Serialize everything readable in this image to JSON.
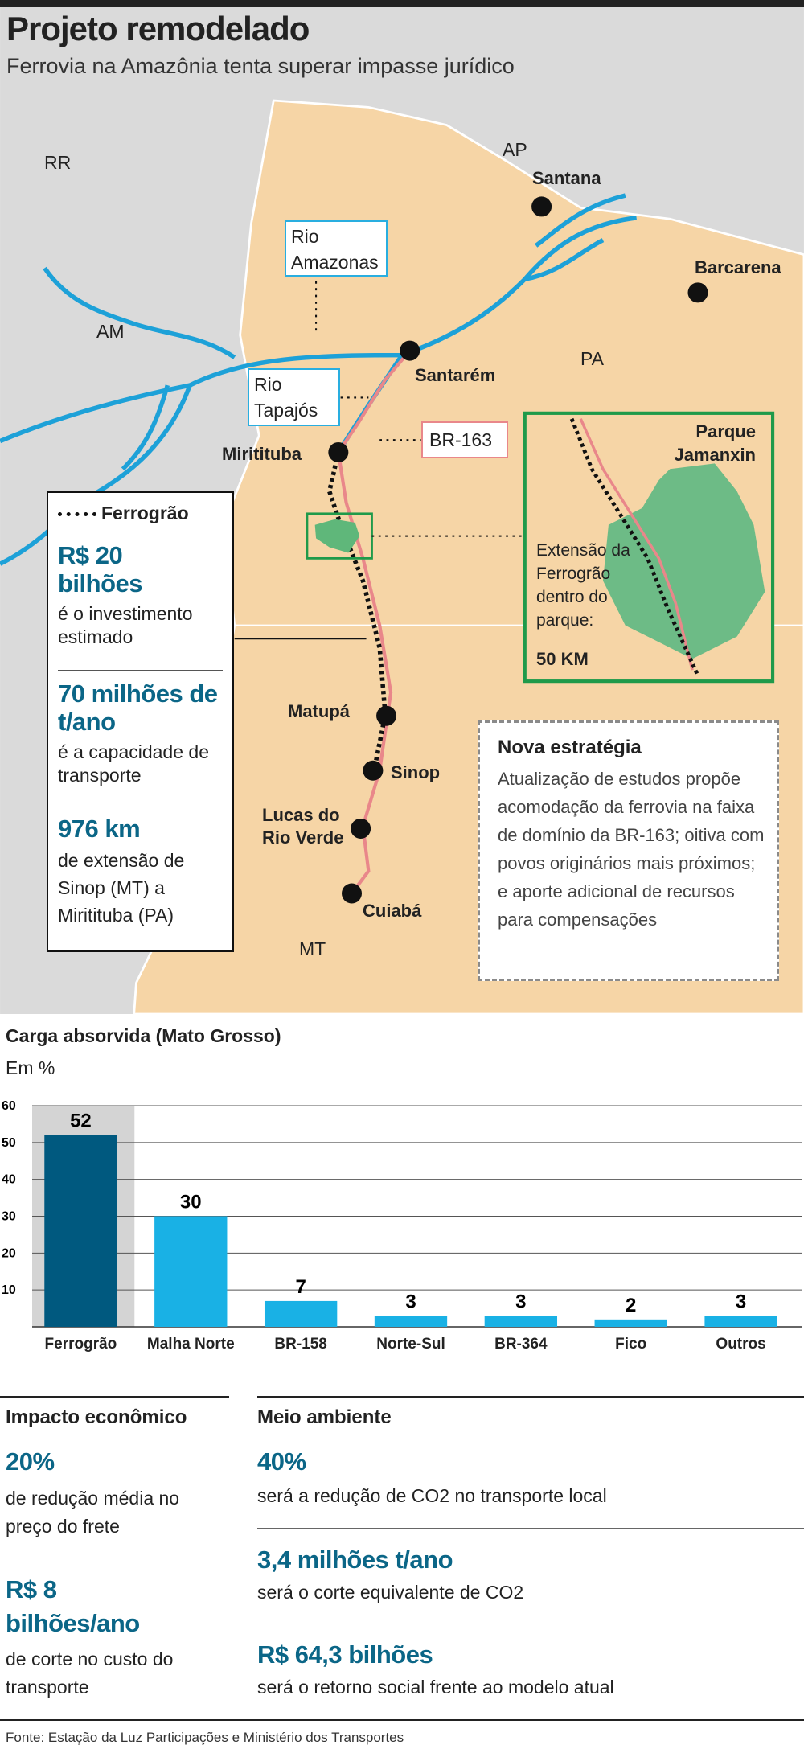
{
  "header": {
    "title": "Projeto remodelado",
    "subtitle": "Ferrovia na Amazônia tenta superar impasse jurídico"
  },
  "map": {
    "states": [
      "RR",
      "AP",
      "AM",
      "PA",
      "MT"
    ],
    "cities": [
      "Santana",
      "Barcarena",
      "Santarém",
      "Miritituba",
      "Matupá",
      "Sinop",
      "Lucas do Rio Verde",
      "Cuiabá"
    ],
    "rivers": [
      "Rio Amazonas",
      "Rio Tapajós"
    ],
    "highway": "BR-163",
    "inset": {
      "title": "Parque Jamanxin",
      "note": "Extensão da Ferrogrão dentro do parque:",
      "length": "50 KM"
    }
  },
  "infobox": {
    "legend": "Ferrogrão",
    "items": [
      {
        "value": "R$ 20 bilhões",
        "text": "é o investimento estimado"
      },
      {
        "value": "70 milhões de t/ano",
        "text": "é a capacidade de transporte"
      },
      {
        "value": "976 km",
        "text": "de extensão de Sinop (MT) a Miritituba (PA)"
      }
    ]
  },
  "strategy": {
    "title": "Nova estratégia",
    "text": "Atualização de estudos propõe acomodação da ferrovia na faixa de domínio da BR-163; oitiva com povos originários mais próximos; e aporte adicional de recursos para compensações"
  },
  "chart_data": {
    "type": "bar",
    "title": "Carga absorvida (Mato Grosso)",
    "subtitle": "Em %",
    "categories": [
      "Ferrogrão",
      "Malha Norte",
      "BR-158",
      "Norte-Sul",
      "BR-364",
      "Fico",
      "Outros"
    ],
    "values": [
      52,
      30,
      7,
      3,
      3,
      2,
      3
    ],
    "colors": [
      "#00597f",
      "#19b1e5",
      "#19b1e5",
      "#19b1e5",
      "#19b1e5",
      "#19b1e5",
      "#19b1e5"
    ],
    "ylim": [
      0,
      60
    ],
    "yticks": [
      10,
      20,
      30,
      40,
      50,
      60
    ],
    "grid": true
  },
  "impact": {
    "title": "Impacto econômico",
    "items": [
      {
        "value": "20%",
        "text": "de redução média no preço do frete"
      },
      {
        "value": "R$ 8 bilhões/ano",
        "text": "de corte no custo do transporte"
      }
    ]
  },
  "environment": {
    "title": "Meio ambiente",
    "items": [
      {
        "value": "40%",
        "text": "será a redução de CO2 no transporte local"
      },
      {
        "value": "3,4 milhões t/ano",
        "text": "será o corte equivalente de CO2"
      },
      {
        "value": "R$ 64,3 bilhões",
        "text": "será o retorno social frente ao modelo atual"
      }
    ]
  },
  "source": "Fonte: Estação da Luz Participações e Ministério dos Transportes"
}
